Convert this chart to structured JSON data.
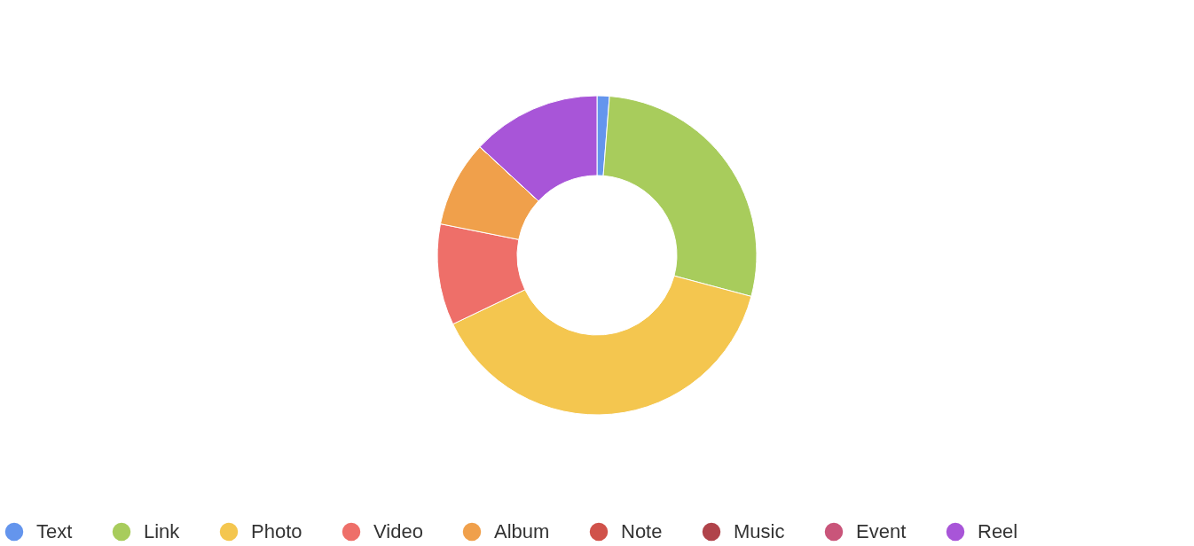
{
  "chart_data": {
    "type": "donut",
    "categories": [
      "Text",
      "Link",
      "Photo",
      "Video",
      "Album",
      "Note",
      "Music",
      "Event",
      "Reel"
    ],
    "values": [
      1.25,
      27.9,
      38.75,
      10.25,
      8.75,
      0,
      0,
      0,
      13.1
    ],
    "colors": [
      "#6495ed",
      "#a8cc5c",
      "#f4c64f",
      "#ee6f69",
      "#f0a04b",
      "#d0524a",
      "#b0434a",
      "#c9557a",
      "#a855d8"
    ],
    "legend": "bottom"
  }
}
